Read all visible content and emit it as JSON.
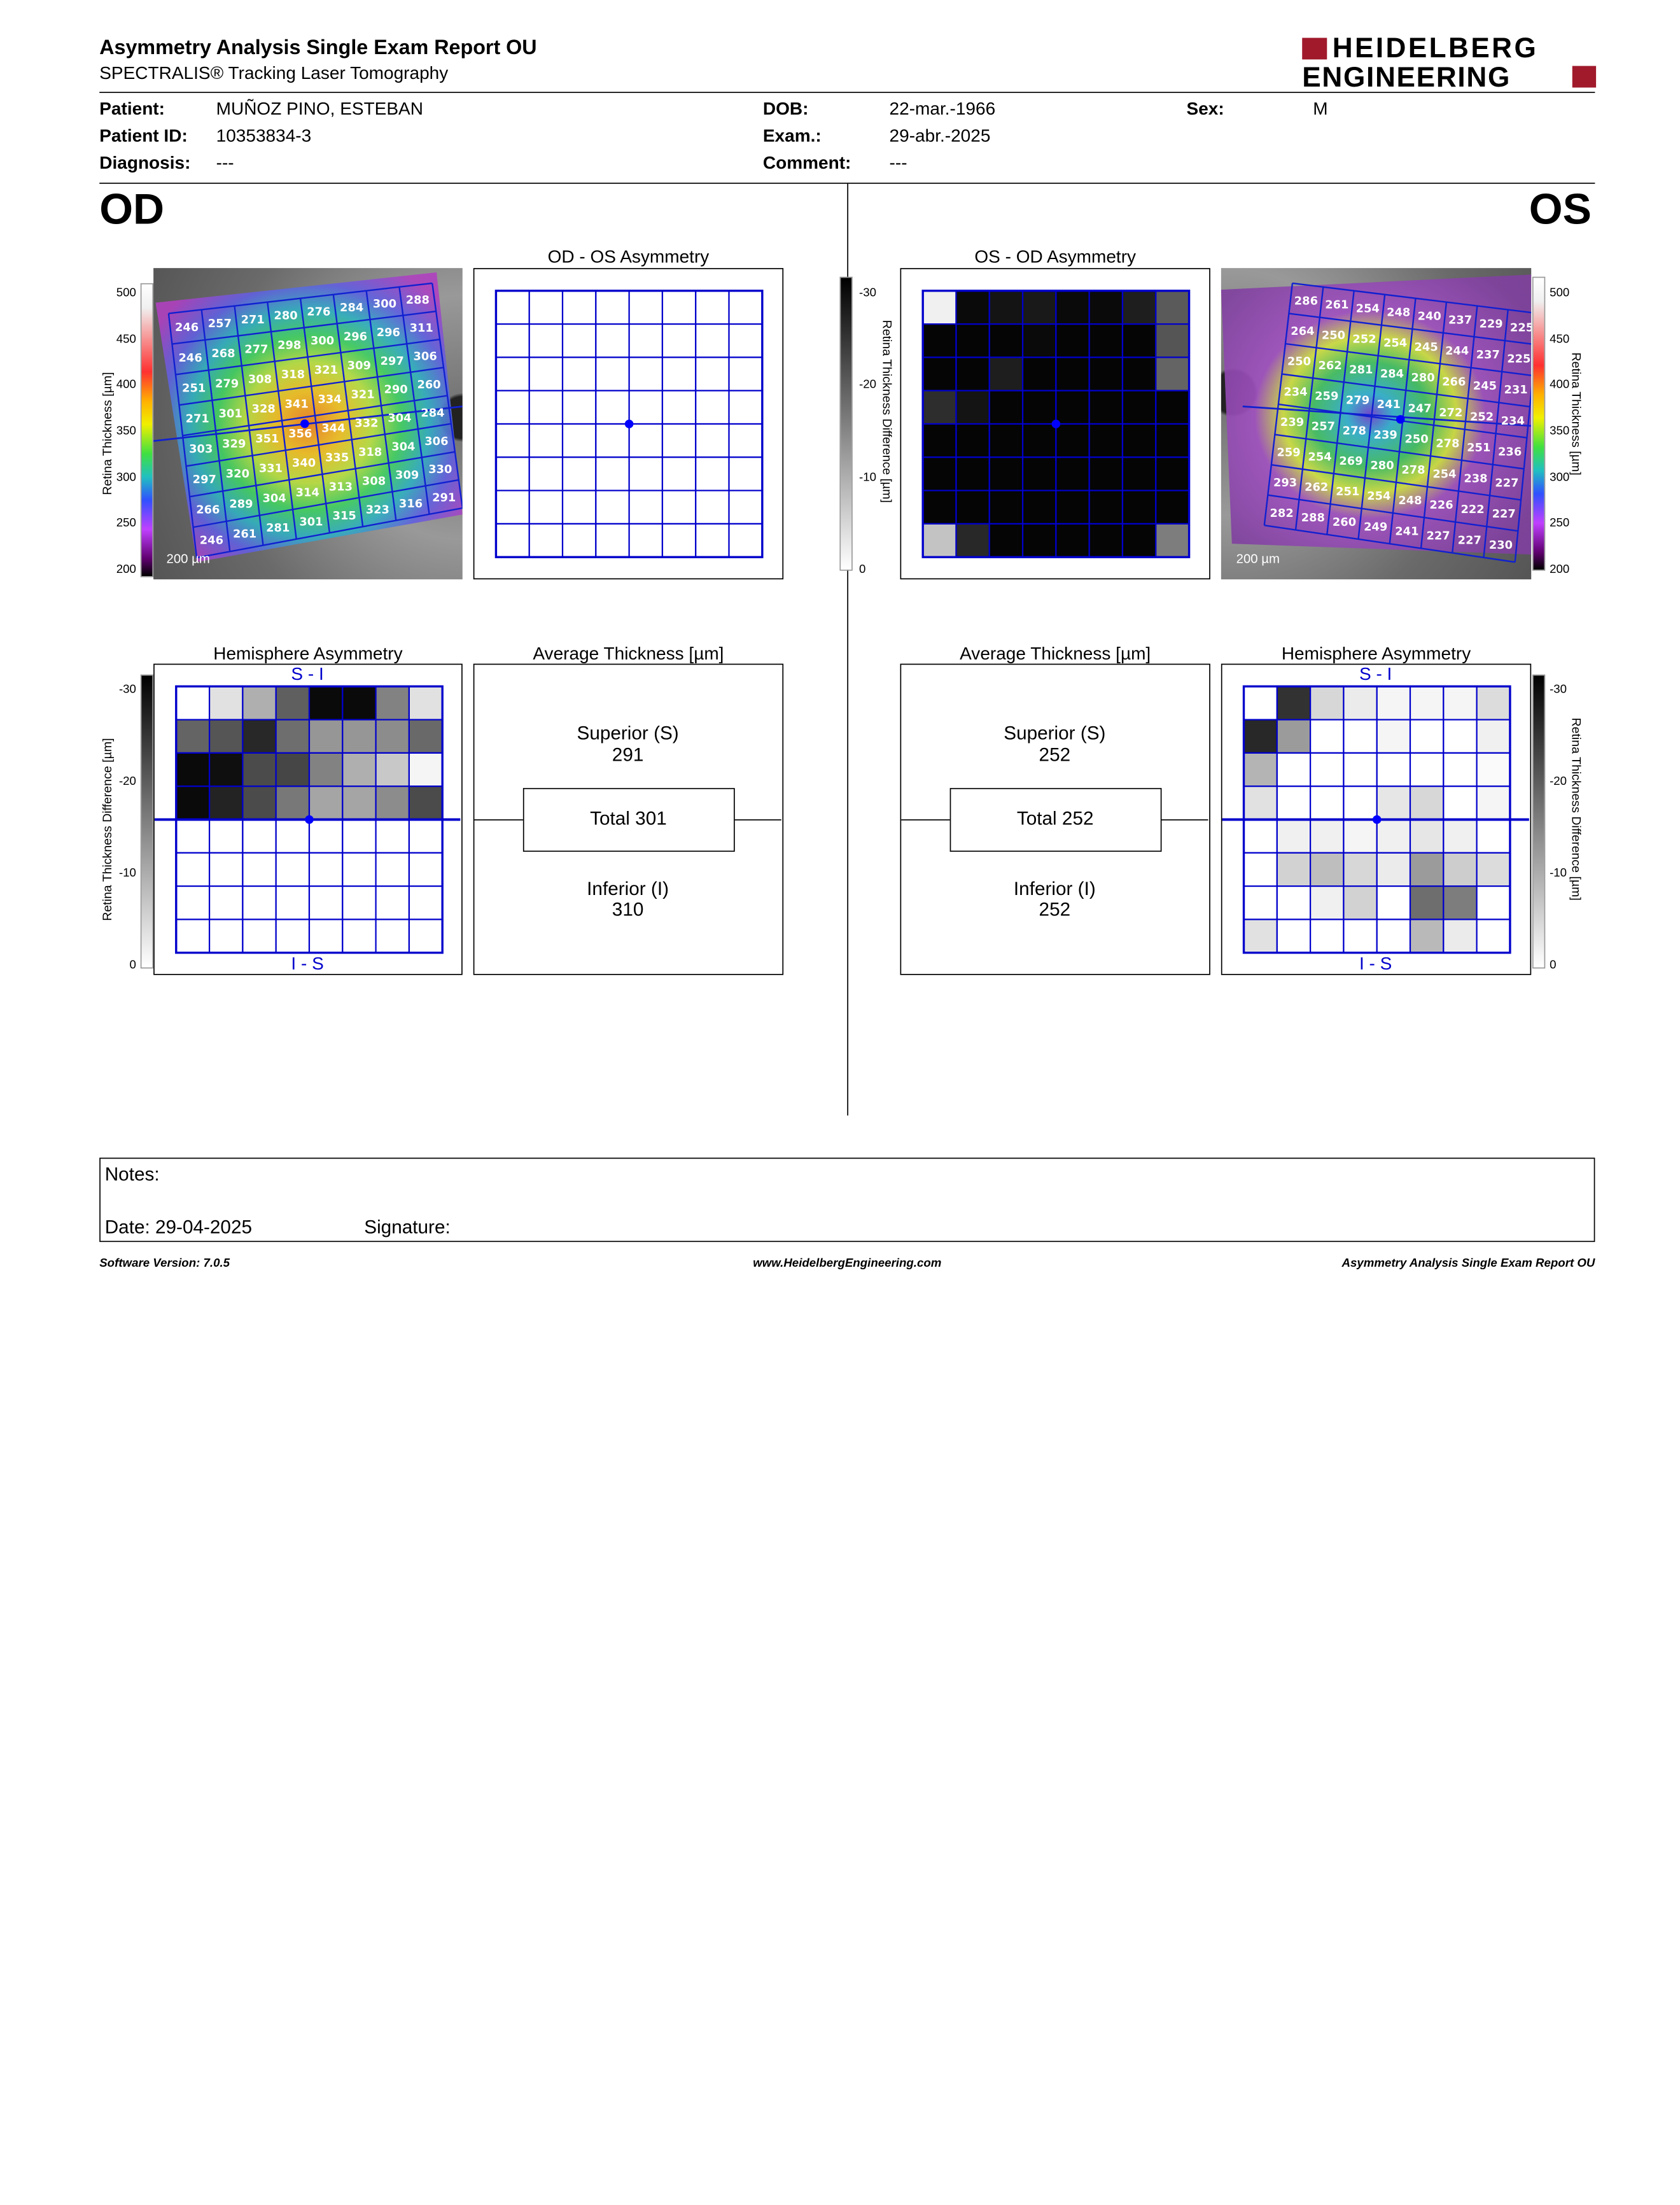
{
  "header": {
    "title": "Asymmetry Analysis Single Exam Report OU",
    "subtitle": "SPECTRALIS® Tracking Laser Tomography",
    "logo_line1": "HEIDELBERG",
    "logo_line2": "ENGINEERING"
  },
  "patient": {
    "patient_label": "Patient:",
    "patient_value": "MUÑOZ PINO, ESTEBAN",
    "id_label": "Patient ID:",
    "id_value": "10353834-3",
    "diagnosis_label": "Diagnosis:",
    "diagnosis_value": "---",
    "dob_label": "DOB:",
    "dob_value": "22-mar.-1966",
    "exam_label": "Exam.:",
    "exam_value": "29-abr.-2025",
    "comment_label": "Comment:",
    "comment_value": "---",
    "sex_label": "Sex:",
    "sex_value": "M"
  },
  "od": {
    "eye_label": "OD",
    "asym_title": "OD - OS Asymmetry",
    "hemi_title": "Hemisphere Asymmetry",
    "avg_title": "Average Thickness [µm]",
    "superior_label": "Superior (S)",
    "superior_value": "291",
    "total_label": "Total 301",
    "inferior_label": "Inferior (I)",
    "inferior_value": "310",
    "si_label": "S - I",
    "is_label": "I - S",
    "scale_label": "200 µm",
    "thickness_grid": [
      [
        "246",
        "257",
        "271",
        "280",
        "276",
        "284",
        "300",
        "288"
      ],
      [
        "246",
        "268",
        "277",
        "298",
        "300",
        "296",
        "296",
        "311"
      ],
      [
        "251",
        "279",
        "308",
        "318",
        "321",
        "309",
        "297",
        "306"
      ],
      [
        "271",
        "301",
        "328",
        "341",
        "334",
        "321",
        "290",
        "260"
      ],
      [
        "303",
        "329",
        "351",
        "356",
        "344",
        "332",
        "304",
        "284"
      ],
      [
        "297",
        "320",
        "331",
        "340",
        "335",
        "318",
        "304",
        "306"
      ],
      [
        "266",
        "289",
        "304",
        "314",
        "313",
        "308",
        "309",
        "330"
      ],
      [
        "246",
        "261",
        "281",
        "301",
        "315",
        "323",
        "316",
        "291"
      ]
    ],
    "asym_gray": [
      [
        255,
        255,
        255,
        255,
        255,
        255,
        255,
        255
      ],
      [
        255,
        255,
        255,
        255,
        255,
        255,
        255,
        255
      ],
      [
        255,
        255,
        255,
        255,
        255,
        255,
        255,
        255
      ],
      [
        255,
        255,
        255,
        255,
        255,
        255,
        255,
        255
      ],
      [
        255,
        255,
        255,
        255,
        255,
        255,
        255,
        255
      ],
      [
        255,
        255,
        255,
        255,
        255,
        255,
        255,
        255
      ],
      [
        255,
        255,
        255,
        255,
        255,
        255,
        255,
        255
      ],
      [
        255,
        255,
        255,
        255,
        255,
        255,
        255,
        255
      ]
    ],
    "hemi_gray": [
      [
        255,
        225,
        175,
        95,
        10,
        10,
        130,
        225
      ],
      [
        100,
        85,
        40,
        110,
        150,
        150,
        140,
        105
      ],
      [
        10,
        15,
        75,
        70,
        130,
        175,
        200,
        245
      ],
      [
        10,
        35,
        75,
        120,
        165,
        165,
        140,
        75
      ],
      [
        255,
        255,
        255,
        255,
        255,
        255,
        255,
        255
      ],
      [
        255,
        255,
        255,
        255,
        255,
        255,
        255,
        255
      ],
      [
        255,
        255,
        255,
        255,
        255,
        255,
        255,
        255
      ],
      [
        255,
        255,
        255,
        255,
        255,
        255,
        255,
        255
      ]
    ]
  },
  "os": {
    "eye_label": "OS",
    "asym_title": "OS - OD Asymmetry",
    "hemi_title": "Hemisphere Asymmetry",
    "avg_title": "Average Thickness [µm]",
    "superior_label": "Superior (S)",
    "superior_value": "252",
    "total_label": "Total 252",
    "inferior_label": "Inferior (I)",
    "inferior_value": "252",
    "si_label": "S - I",
    "is_label": "I - S",
    "scale_label": "200 µm",
    "thickness_grid": [
      [
        "286",
        "261",
        "254",
        "248",
        "240",
        "237",
        "229",
        "225"
      ],
      [
        "264",
        "250",
        "252",
        "254",
        "245",
        "244",
        "237",
        "225"
      ],
      [
        "250",
        "262",
        "281",
        "284",
        "280",
        "266",
        "245",
        "231"
      ],
      [
        "234",
        "259",
        "279",
        "241",
        "247",
        "272",
        "252",
        "234"
      ],
      [
        "239",
        "257",
        "278",
        "239",
        "250",
        "278",
        "251",
        "236"
      ],
      [
        "259",
        "254",
        "269",
        "280",
        "278",
        "254",
        "238",
        "227"
      ],
      [
        "293",
        "262",
        "251",
        "254",
        "248",
        "226",
        "222",
        "227"
      ],
      [
        "282",
        "288",
        "260",
        "249",
        "241",
        "227",
        "227",
        "230"
      ]
    ],
    "asym_gray": [
      [
        240,
        10,
        20,
        25,
        10,
        10,
        30,
        90
      ],
      [
        5,
        5,
        5,
        10,
        5,
        5,
        5,
        85
      ],
      [
        5,
        5,
        30,
        5,
        5,
        5,
        5,
        100
      ],
      [
        45,
        20,
        5,
        5,
        5,
        5,
        5,
        5
      ],
      [
        5,
        5,
        5,
        5,
        5,
        5,
        5,
        5
      ],
      [
        5,
        5,
        5,
        5,
        5,
        5,
        5,
        5
      ],
      [
        5,
        5,
        5,
        5,
        5,
        5,
        5,
        5
      ],
      [
        195,
        40,
        5,
        5,
        5,
        5,
        5,
        125
      ]
    ],
    "hemi_gray": [
      [
        255,
        50,
        215,
        235,
        245,
        245,
        245,
        220
      ],
      [
        40,
        155,
        255,
        255,
        245,
        255,
        255,
        240
      ],
      [
        180,
        255,
        255,
        255,
        255,
        255,
        255,
        250
      ],
      [
        225,
        255,
        255,
        255,
        230,
        215,
        255,
        245
      ],
      [
        255,
        240,
        240,
        245,
        240,
        230,
        240,
        255
      ],
      [
        255,
        210,
        190,
        215,
        235,
        155,
        205,
        220
      ],
      [
        255,
        255,
        240,
        210,
        255,
        110,
        125,
        255
      ],
      [
        225,
        255,
        255,
        255,
        255,
        185,
        235,
        255
      ]
    ]
  },
  "scales": {
    "thickness_label": "Retina Thickness [µm]",
    "thickness_ticks": [
      "500",
      "450",
      "400",
      "350",
      "300",
      "250",
      "200"
    ],
    "diff_label": "Retina Thickness Difference [µm]",
    "diff_ticks": [
      "-30",
      "-20",
      "-10",
      "0"
    ]
  },
  "notes": {
    "notes_label": "Notes:",
    "date_label": "Date: 29-04-2025",
    "signature_label": "Signature:"
  },
  "footer": {
    "software": "Software Version: 7.0.5",
    "url": "www.HeidelbergEngineering.com",
    "report": "Asymmetry Analysis Single Exam Report OU"
  },
  "colors": {
    "grid_blue": "#0000cc",
    "logo_red": "#a01a2c"
  }
}
